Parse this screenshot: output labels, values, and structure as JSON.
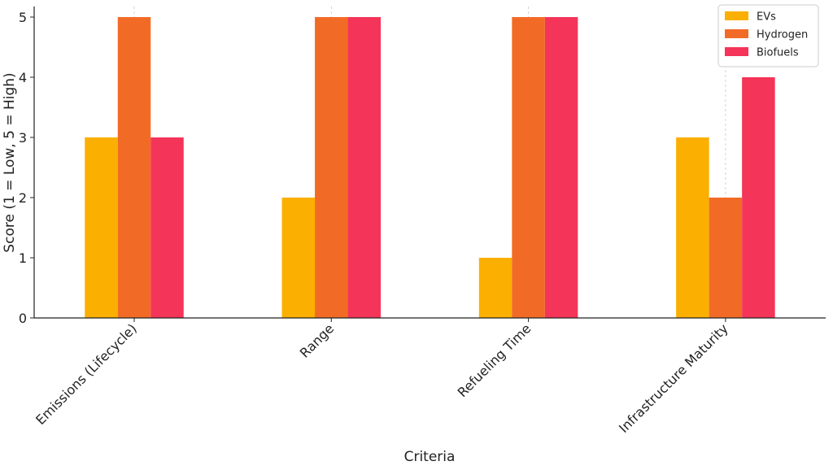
{
  "chart_data": {
    "type": "bar",
    "title": "",
    "xlabel": "Criteria",
    "ylabel": "Score (1 = Low, 5 = High)",
    "categories": [
      "Emissions (Lifecycle)",
      "Range",
      "Refueling Time",
      "Infrastructure Maturity"
    ],
    "series": [
      {
        "name": "EVs",
        "values": [
          3,
          2,
          1,
          3
        ],
        "color": "#FBAF00"
      },
      {
        "name": "Hydrogen",
        "values": [
          5,
          5,
          5,
          2
        ],
        "color": "#F26B26"
      },
      {
        "name": "Biofuels",
        "values": [
          3,
          5,
          5,
          4
        ],
        "color": "#F43458"
      }
    ],
    "ylim": [
      0,
      5
    ],
    "yticks": [
      0,
      1,
      2,
      3,
      4,
      5
    ],
    "grid": "vertical dashed at categories",
    "legend": "top-right"
  }
}
